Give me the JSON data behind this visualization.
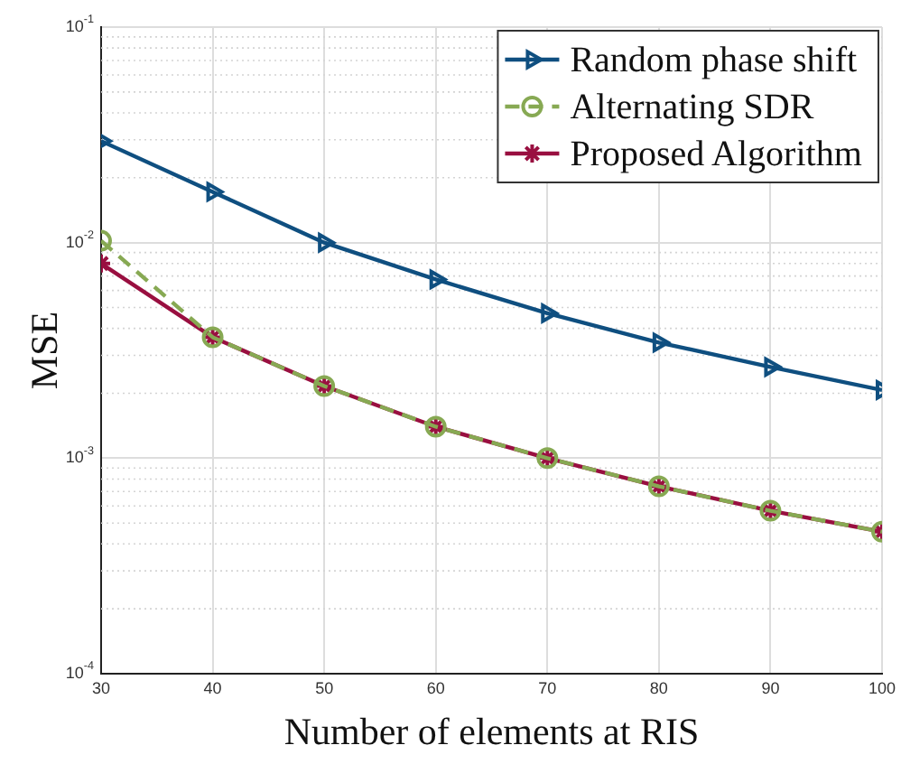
{
  "chart_data": {
    "type": "line",
    "xlabel": "Number of elements at RIS",
    "ylabel": "MSE",
    "x": [
      30,
      40,
      50,
      60,
      70,
      80,
      90,
      100
    ],
    "series": [
      {
        "name": "Random phase shift",
        "color": "#0f4f80",
        "marker": "triangle",
        "line_style": "solid",
        "values": [
          0.0296,
          0.0172,
          0.01,
          0.00675,
          0.0047,
          0.00344,
          0.00265,
          0.00207
        ]
      },
      {
        "name": "Alternating SDR",
        "color": "#87a953",
        "marker": "circle",
        "line_style": "dashed",
        "values": [
          0.0102,
          0.00364,
          0.00216,
          0.0014,
          0.001,
          0.00074,
          0.00057,
          0.000456
        ]
      },
      {
        "name": "Proposed Algorithm",
        "color": "#990f40",
        "marker": "cross",
        "line_style": "solid",
        "values": [
          0.008,
          0.00364,
          0.00216,
          0.0014,
          0.001,
          0.00074,
          0.00057,
          0.000456
        ]
      }
    ],
    "log": "y",
    "xlim": [
      30,
      100
    ],
    "xticks": [
      30,
      40,
      50,
      60,
      70,
      80,
      90,
      100
    ],
    "ylim": [
      0.0001,
      0.1
    ],
    "yticks": [
      {
        "value": 0.0001,
        "label": "10$^{-4}$"
      },
      {
        "value": 0.001,
        "label": "10$^{-3}$"
      },
      {
        "value": 0.01,
        "label": "10$^{-2}$"
      },
      {
        "value": 0.1,
        "label": "10$^{-1}$"
      }
    ],
    "grid": true,
    "legend": "top right"
  }
}
